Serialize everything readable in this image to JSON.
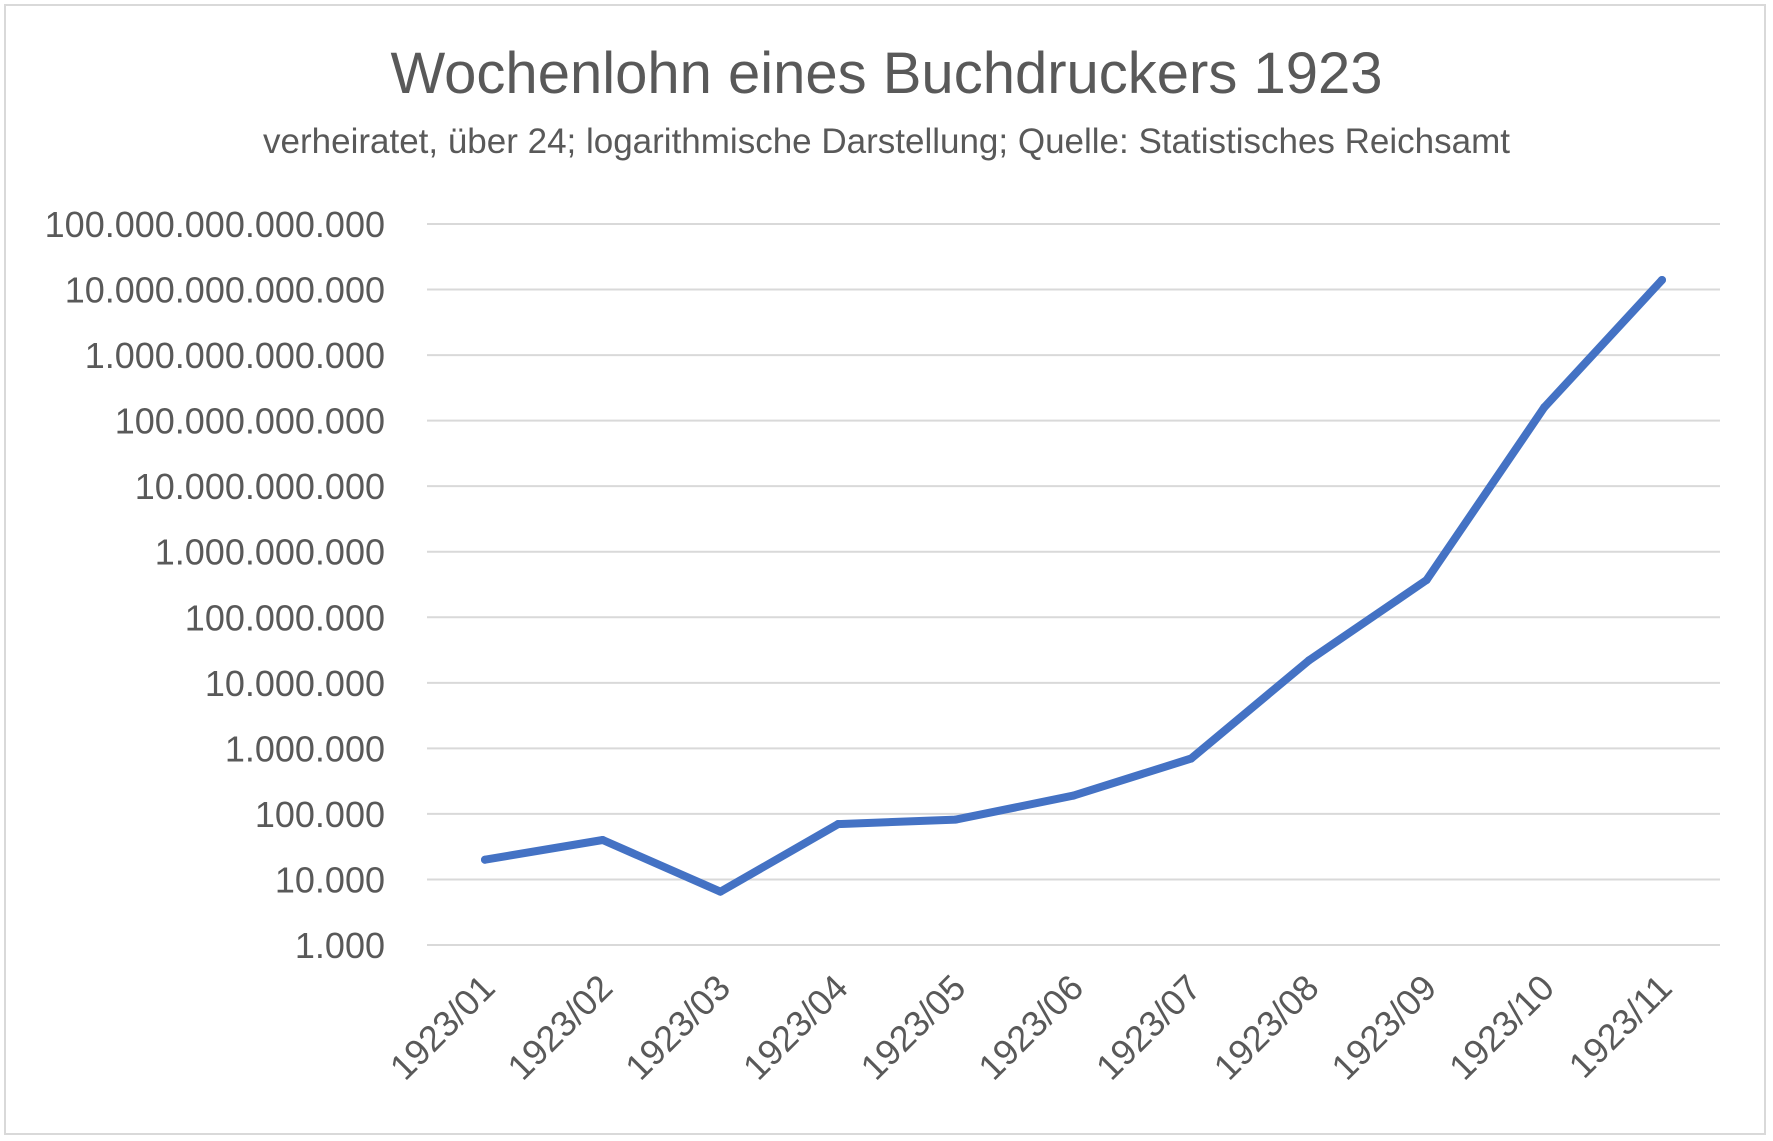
{
  "chart_data": {
    "type": "line",
    "title": "Wochenlohn eines Buchdruckers 1923",
    "subtitle": "verheiratet, über 24; logarithmische Darstellung; Quelle: Statistisches Reichsamt",
    "xlabel": "",
    "ylabel": "",
    "y_scale": "log10",
    "ylim": [
      1000,
      100000000000000
    ],
    "grid": true,
    "legend": "none",
    "y_tick_labels": [
      {
        "value": 1000,
        "label": "1.000"
      },
      {
        "value": 10000,
        "label": "10.000"
      },
      {
        "value": 100000,
        "label": "100.000"
      },
      {
        "value": 1000000,
        "label": "1.000.000"
      },
      {
        "value": 10000000,
        "label": "10.000.000"
      },
      {
        "value": 100000000,
        "label": "100.000.000"
      },
      {
        "value": 1000000000,
        "label": "1.000.000.000"
      },
      {
        "value": 10000000000,
        "label": "10.000.000.000"
      },
      {
        "value": 100000000000,
        "label": "100.000.000.000"
      },
      {
        "value": 1000000000000,
        "label": "1.000.000.000.000"
      },
      {
        "value": 10000000000000,
        "label": "10.000.000.000.000"
      },
      {
        "value": 100000000000000,
        "label": "100.000.000.000.000"
      }
    ],
    "categories": [
      "1923/01",
      "1923/02",
      "1923/03",
      "1923/04",
      "1923/05",
      "1923/06",
      "1923/07",
      "1923/08",
      "1923/09",
      "1923/10",
      "1923/11"
    ],
    "series": [
      {
        "values": [
          20000,
          40000,
          6500,
          70000,
          82000,
          190000,
          700000,
          22000000,
          370000000,
          160000000000,
          14000000000000
        ],
        "color": "#4472c4"
      }
    ],
    "colors": {
      "line": "#4472c4",
      "grid": "#d9d9d9",
      "text": "#595959",
      "border": "#d9d9d9"
    }
  }
}
